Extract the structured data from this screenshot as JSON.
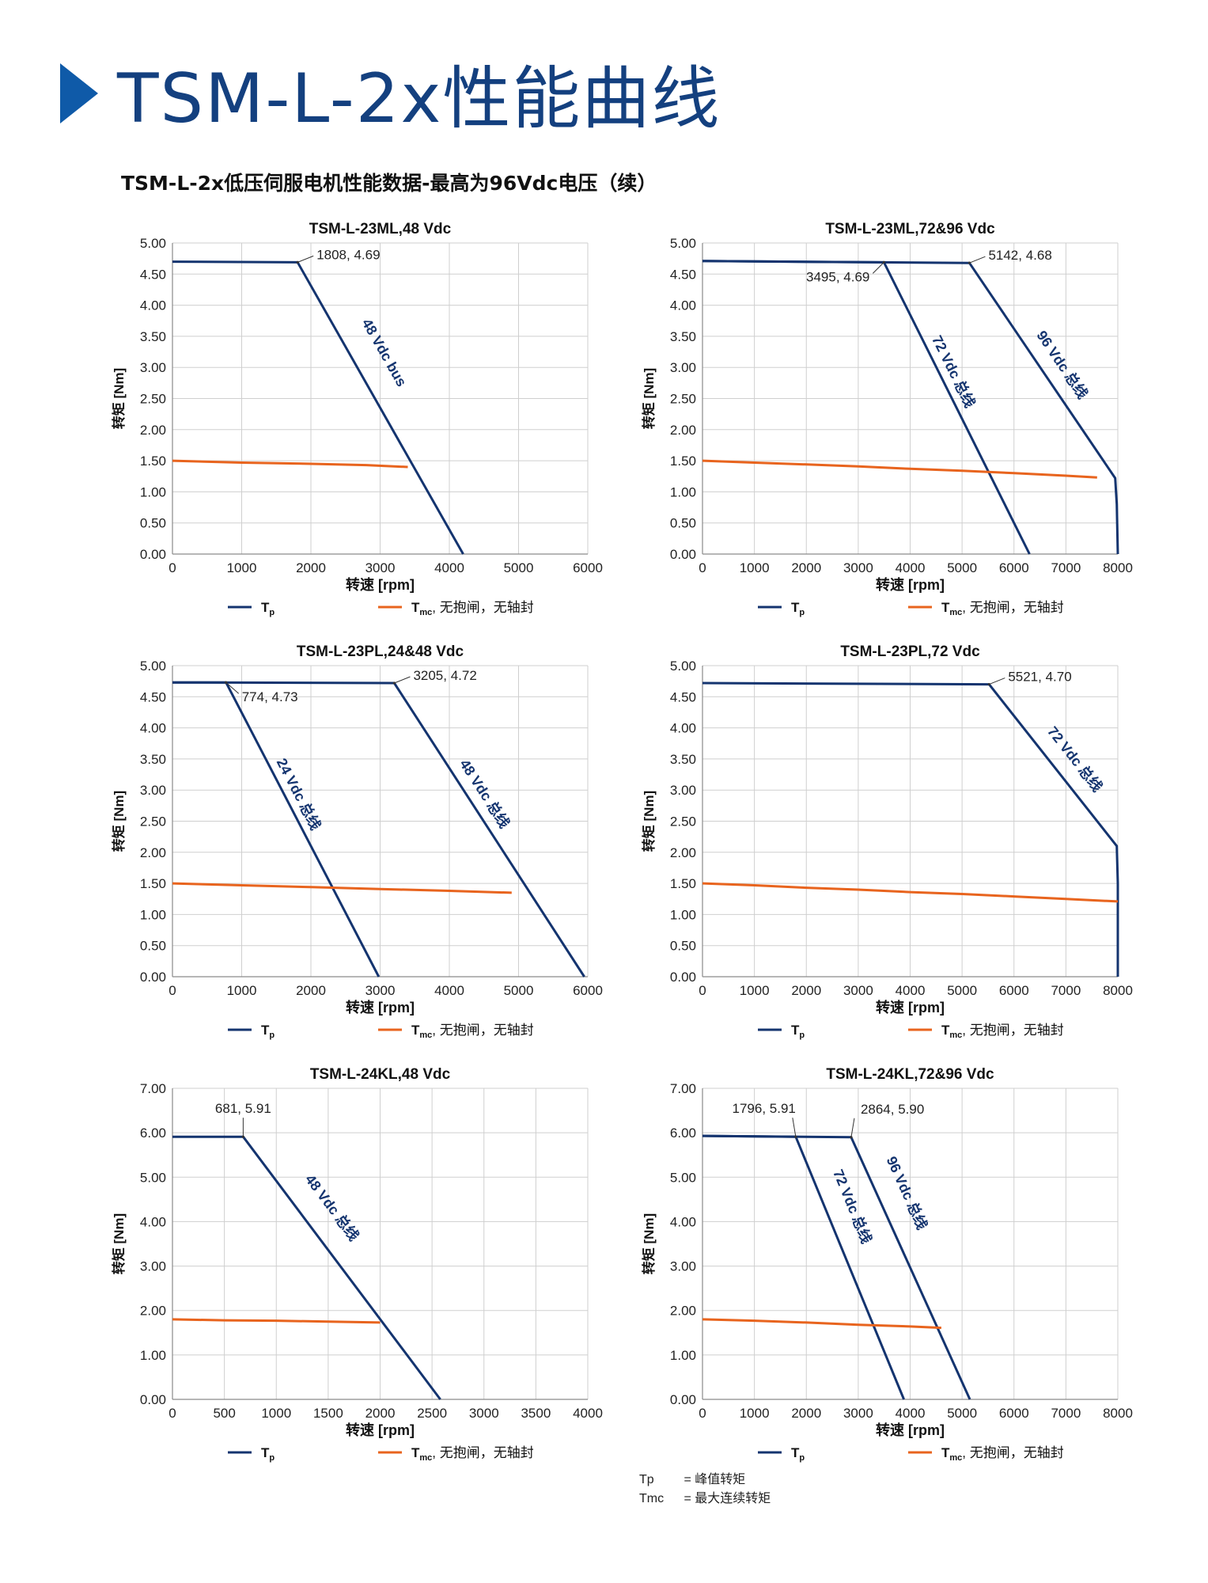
{
  "header": {
    "title": "TSM-L-2x性能曲线",
    "subtitle": "TSM-L-2x低压伺服电机性能数据-最高为96Vdc电压（续）"
  },
  "colors": {
    "tp": "#14346f",
    "tmc": "#e8641e",
    "grid": "#cfcfcf",
    "header_arrow": "#0f5aa8",
    "title": "#14407f"
  },
  "chart_data": [
    {
      "type": "line",
      "title": "TSM-L-23ML,48 Vdc",
      "xlabel": "转速 [rpm]",
      "ylabel": "转矩 [Nm]",
      "xlim": [
        0,
        6000
      ],
      "xticks": [
        0,
        1000,
        2000,
        3000,
        4000,
        5000,
        6000
      ],
      "ylim": [
        0,
        5
      ],
      "yticks": [
        0,
        0.5,
        1,
        1.5,
        2,
        2.5,
        3,
        3.5,
        4,
        4.5,
        5
      ],
      "ydecimals": 2,
      "grid": true,
      "legend_position": "bottom",
      "series": [
        {
          "name": "Tp",
          "role": "tp",
          "x": [
            0,
            1808,
            4200
          ],
          "y": [
            4.7,
            4.69,
            0
          ],
          "label": "48 Vdc bus",
          "label_at": [
            3000,
            3.2
          ]
        },
        {
          "name": "Tmc",
          "role": "tmc",
          "x": [
            0,
            1000,
            2000,
            2800,
            3400
          ],
          "y": [
            1.5,
            1.47,
            1.45,
            1.43,
            1.4
          ]
        }
      ],
      "annotations": [
        {
          "text": "1808, 4.69",
          "x": 1808,
          "y": 4.69,
          "place": "right"
        }
      ]
    },
    {
      "type": "line",
      "title": "TSM-L-23ML,72&96 Vdc",
      "xlabel": "转速 [rpm]",
      "ylabel": "转矩 [Nm]",
      "xlim": [
        0,
        8000
      ],
      "xticks": [
        0,
        1000,
        2000,
        3000,
        4000,
        5000,
        6000,
        7000,
        8000
      ],
      "ylim": [
        0,
        5
      ],
      "yticks": [
        0,
        0.5,
        1,
        1.5,
        2,
        2.5,
        3,
        3.5,
        4,
        4.5,
        5
      ],
      "ydecimals": 2,
      "grid": true,
      "legend_position": "bottom",
      "series": [
        {
          "name": "Tp",
          "role": "tp",
          "x": [
            0,
            3495,
            6300
          ],
          "y": [
            4.71,
            4.69,
            0
          ],
          "label": "72 Vdc 总线",
          "label_at": [
            4750,
            2.9
          ]
        },
        {
          "name": "Tp",
          "role": "tp",
          "x": [
            0,
            5142,
            7950,
            7980,
            8000
          ],
          "y": [
            4.71,
            4.68,
            1.22,
            0.8,
            0
          ],
          "label": "96 Vdc 总线",
          "label_at": [
            6850,
            3.0
          ]
        },
        {
          "name": "Tmc",
          "role": "tmc",
          "x": [
            0,
            1000,
            2000,
            3000,
            4000,
            5000,
            6000,
            7000,
            7600
          ],
          "y": [
            1.5,
            1.47,
            1.44,
            1.41,
            1.37,
            1.34,
            1.3,
            1.26,
            1.23
          ]
        }
      ],
      "annotations": [
        {
          "text": "5142, 4.68",
          "x": 5142,
          "y": 4.68,
          "place": "right"
        },
        {
          "text": "3495, 4.69",
          "x": 3495,
          "y": 4.69,
          "place": "below-left"
        }
      ]
    },
    {
      "type": "line",
      "title": "TSM-L-23PL,24&48 Vdc",
      "xlabel": "转速 [rpm]",
      "ylabel": "转矩 [Nm]",
      "xlim": [
        0,
        6000
      ],
      "xticks": [
        0,
        1000,
        2000,
        3000,
        4000,
        5000,
        6000
      ],
      "ylim": [
        0,
        5
      ],
      "yticks": [
        0,
        0.5,
        1,
        1.5,
        2,
        2.5,
        3,
        3.5,
        4,
        4.5,
        5
      ],
      "ydecimals": 2,
      "grid": true,
      "legend_position": "bottom",
      "series": [
        {
          "name": "Tp",
          "role": "tp",
          "x": [
            0,
            774,
            2980
          ],
          "y": [
            4.73,
            4.73,
            0
          ],
          "label": "24 Vdc 总线",
          "label_at": [
            1760,
            2.9
          ]
        },
        {
          "name": "Tp",
          "role": "tp",
          "x": [
            0,
            3205,
            5950
          ],
          "y": [
            4.73,
            4.72,
            0
          ],
          "label": "48 Vdc 总线",
          "label_at": [
            4450,
            2.9
          ]
        },
        {
          "name": "Tmc",
          "role": "tmc",
          "x": [
            0,
            1000,
            2000,
            3000,
            4000,
            4900
          ],
          "y": [
            1.5,
            1.47,
            1.44,
            1.41,
            1.38,
            1.35
          ]
        }
      ],
      "annotations": [
        {
          "text": "3205, 4.72",
          "x": 3205,
          "y": 4.72,
          "place": "right"
        },
        {
          "text": "774, 4.73",
          "x": 774,
          "y": 4.73,
          "place": "below-right"
        }
      ]
    },
    {
      "type": "line",
      "title": "TSM-L-23PL,72 Vdc",
      "xlabel": "转速 [rpm]",
      "ylabel": "转矩 [Nm]",
      "xlim": [
        0,
        8000
      ],
      "xticks": [
        0,
        1000,
        2000,
        3000,
        4000,
        5000,
        6000,
        7000,
        8000
      ],
      "ylim": [
        0,
        5
      ],
      "yticks": [
        0,
        0.5,
        1,
        1.5,
        2,
        2.5,
        3,
        3.5,
        4,
        4.5,
        5
      ],
      "ydecimals": 2,
      "grid": true,
      "legend_position": "bottom",
      "series": [
        {
          "name": "Tp",
          "role": "tp",
          "x": [
            0,
            5521,
            7980,
            8000,
            8000
          ],
          "y": [
            4.72,
            4.7,
            2.1,
            1.5,
            0
          ],
          "label": "72 Vdc 总线",
          "label_at": [
            7100,
            3.45
          ]
        },
        {
          "name": "Tmc",
          "role": "tmc",
          "x": [
            0,
            1000,
            2000,
            3000,
            4000,
            5000,
            6000,
            7000,
            8000
          ],
          "y": [
            1.5,
            1.47,
            1.43,
            1.4,
            1.36,
            1.33,
            1.29,
            1.25,
            1.21
          ]
        }
      ],
      "annotations": [
        {
          "text": "5521, 4.70",
          "x": 5521,
          "y": 4.7,
          "place": "right"
        }
      ]
    },
    {
      "type": "line",
      "title": "TSM-L-24KL,48 Vdc",
      "xlabel": "转速 [rpm]",
      "ylabel": "转矩 [Nm]",
      "xlim": [
        0,
        4000
      ],
      "xticks": [
        0,
        500,
        1000,
        1500,
        2000,
        2500,
        3000,
        3500,
        4000
      ],
      "ylim": [
        0,
        7
      ],
      "yticks": [
        0,
        1,
        2,
        3,
        4,
        5,
        6,
        7
      ],
      "ydecimals": 2,
      "grid": true,
      "legend_position": "bottom",
      "series": [
        {
          "name": "Tp",
          "role": "tp",
          "x": [
            0,
            681,
            2580
          ],
          "y": [
            5.91,
            5.91,
            0
          ],
          "label": "48 Vdc 总线",
          "label_at": [
            1500,
            4.25
          ]
        },
        {
          "name": "Tmc",
          "role": "tmc",
          "x": [
            0,
            500,
            1000,
            1500,
            2000
          ],
          "y": [
            1.8,
            1.78,
            1.77,
            1.75,
            1.73
          ]
        }
      ],
      "annotations": [
        {
          "text": "681, 5.91",
          "x": 681,
          "y": 5.91,
          "place": "above"
        }
      ]
    },
    {
      "type": "line",
      "title": "TSM-L-24KL,72&96 Vdc",
      "xlabel": "转速 [rpm]",
      "ylabel": "转矩 [Nm]",
      "xlim": [
        0,
        8000
      ],
      "xticks": [
        0,
        1000,
        2000,
        3000,
        4000,
        5000,
        6000,
        7000,
        8000
      ],
      "ylim": [
        0,
        7
      ],
      "yticks": [
        0,
        1,
        2,
        3,
        4,
        5,
        6,
        7
      ],
      "ydecimals": 2,
      "grid": true,
      "legend_position": "bottom",
      "series": [
        {
          "name": "Tp",
          "role": "tp",
          "x": [
            0,
            1796,
            3880
          ],
          "y": [
            5.93,
            5.91,
            0
          ],
          "label": "72 Vdc 总线",
          "label_at": [
            2800,
            4.3
          ]
        },
        {
          "name": "Tp",
          "role": "tp",
          "x": [
            0,
            2864,
            5150
          ],
          "y": [
            5.93,
            5.9,
            0
          ],
          "label": "96 Vdc 总线",
          "label_at": [
            3850,
            4.6
          ]
        },
        {
          "name": "Tmc",
          "role": "tmc",
          "x": [
            0,
            1000,
            2000,
            3000,
            4000,
            4600
          ],
          "y": [
            1.8,
            1.77,
            1.73,
            1.68,
            1.64,
            1.61
          ]
        }
      ],
      "annotations": [
        {
          "text": "1796, 5.91",
          "x": 1796,
          "y": 5.91,
          "place": "above-left"
        },
        {
          "text": "2864, 5.90",
          "x": 2864,
          "y": 5.9,
          "place": "above-right"
        }
      ]
    }
  ],
  "legend": {
    "tp_label": "T",
    "tp_sub": "p",
    "tmc_label": "T",
    "tmc_sub": "mc",
    "tmc_suffix": ", 无抱闸，无轴封"
  },
  "footnotes": [
    {
      "symbol": "Tp",
      "text": "= 峰值转矩"
    },
    {
      "symbol": "Tmc",
      "text": "= 最大连续转矩"
    }
  ]
}
